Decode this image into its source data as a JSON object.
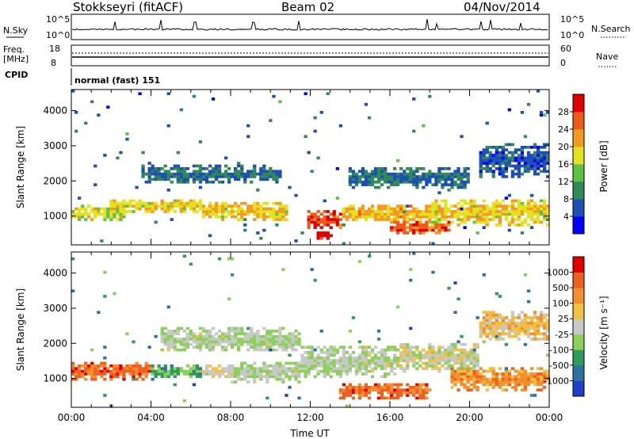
{
  "header": {
    "station": "Stokkseyri (fitACF)",
    "beam": "Beam 02",
    "date": "04/Nov/2014"
  },
  "strip_panels": {
    "nsky": {
      "left_label": "N.Sky",
      "left_ticks": [
        "10^5",
        "10^0"
      ],
      "right_ticks": [
        "10^5",
        "10^0"
      ],
      "right_label": "N.Search"
    },
    "freq": {
      "left_label_1": "Freq.",
      "left_label_2": "[MHz]",
      "left_ticks": [
        "18",
        "8"
      ],
      "right_ticks": [
        "60",
        "0"
      ],
      "right_label": "Nave"
    },
    "cpid": {
      "label": "CPID",
      "mode_text": "normal (fast) 151"
    }
  },
  "chart_data": [
    {
      "type": "heatmap",
      "name": "power",
      "ylabel": "Slant Range [km]",
      "ylim": [
        180,
        4600
      ],
      "yticks": [
        "1000",
        "2000",
        "3000",
        "4000"
      ],
      "xlim": [
        0,
        24
      ],
      "colorbar": {
        "label": "Power [dB]",
        "ticks": [
          "28",
          "24",
          "20",
          "16",
          "12",
          "8",
          "4"
        ],
        "range": [
          0,
          32
        ],
        "colors": [
          "#0000ff",
          "#1e4fb4",
          "#2f8a56",
          "#5cc246",
          "#e4e21e",
          "#f39a22",
          "#ee5a18",
          "#e00000"
        ]
      },
      "bands": [
        {
          "t0": 0.0,
          "t1": 2.8,
          "center_km": 1100,
          "half_km": 200,
          "level": 0.55
        },
        {
          "t0": 2.0,
          "t1": 6.5,
          "center_km": 1300,
          "half_km": 180,
          "level": 0.6
        },
        {
          "t0": 6.5,
          "t1": 10.8,
          "center_km": 1150,
          "half_km": 250,
          "level": 0.6
        },
        {
          "t0": 3.6,
          "t1": 10.5,
          "center_km": 2200,
          "half_km": 250,
          "level": 0.25
        },
        {
          "t0": 11.8,
          "t1": 13.6,
          "center_km": 900,
          "half_km": 300,
          "level": 0.85
        },
        {
          "t0": 12.4,
          "t1": 13.2,
          "center_km": 450,
          "half_km": 120,
          "level": 0.97
        },
        {
          "t0": 13.6,
          "t1": 18.5,
          "center_km": 1100,
          "half_km": 250,
          "level": 0.65
        },
        {
          "t0": 14.0,
          "t1": 20.0,
          "center_km": 2100,
          "half_km": 300,
          "level": 0.25
        },
        {
          "t0": 18.0,
          "t1": 24.0,
          "center_km": 1100,
          "half_km": 350,
          "level": 0.6
        },
        {
          "t0": 20.5,
          "t1": 24.0,
          "center_km": 2600,
          "half_km": 500,
          "level": 0.2
        },
        {
          "t0": 16.0,
          "t1": 19.0,
          "center_km": 650,
          "half_km": 200,
          "level": 0.8
        }
      ]
    },
    {
      "type": "heatmap",
      "name": "velocity",
      "ylabel": "Slant Range [km]",
      "ylim": [
        180,
        4600
      ],
      "yticks": [
        "1000",
        "2000",
        "3000",
        "4000"
      ],
      "xlim": [
        0,
        24
      ],
      "xticks": [
        "00:00",
        "04:00",
        "08:00",
        "12:00",
        "16:00",
        "20:00",
        "00:00"
      ],
      "xlabel": "Time UT",
      "colorbar": {
        "label": "Velocity [m s⁻¹]",
        "ticks": [
          "1000",
          "500",
          "100",
          "25",
          "-25",
          "-100",
          "-500",
          "-1000"
        ],
        "colors": [
          "#2040c8",
          "#2a72a0",
          "#2f9a5a",
          "#8ccf5a",
          "#c8c8c8",
          "#f2c040",
          "#f29030",
          "#ee6020",
          "#e00000"
        ]
      },
      "bands": [
        {
          "t0": 0.0,
          "t1": 4.0,
          "center_km": 1200,
          "half_km": 250,
          "level": 0.8
        },
        {
          "t0": 4.0,
          "t1": 6.5,
          "center_km": 1200,
          "half_km": 200,
          "level": 0.3
        },
        {
          "t0": 6.5,
          "t1": 8.0,
          "center_km": 1200,
          "half_km": 200,
          "level": 0.55
        },
        {
          "t0": 4.5,
          "t1": 11.5,
          "center_km": 2100,
          "half_km": 350,
          "level": 0.45
        },
        {
          "t0": 8.0,
          "t1": 11.5,
          "center_km": 1200,
          "half_km": 300,
          "level": 0.45
        },
        {
          "t0": 11.5,
          "t1": 16.5,
          "center_km": 1500,
          "half_km": 450,
          "level": 0.45
        },
        {
          "t0": 13.5,
          "t1": 18.0,
          "center_km": 650,
          "half_km": 250,
          "level": 0.8
        },
        {
          "t0": 16.5,
          "t1": 20.5,
          "center_km": 1600,
          "half_km": 400,
          "level": 0.5
        },
        {
          "t0": 19.0,
          "t1": 24.0,
          "center_km": 1000,
          "half_km": 350,
          "level": 0.72
        },
        {
          "t0": 20.5,
          "t1": 24.0,
          "center_km": 2500,
          "half_km": 450,
          "level": 0.6
        }
      ]
    }
  ]
}
